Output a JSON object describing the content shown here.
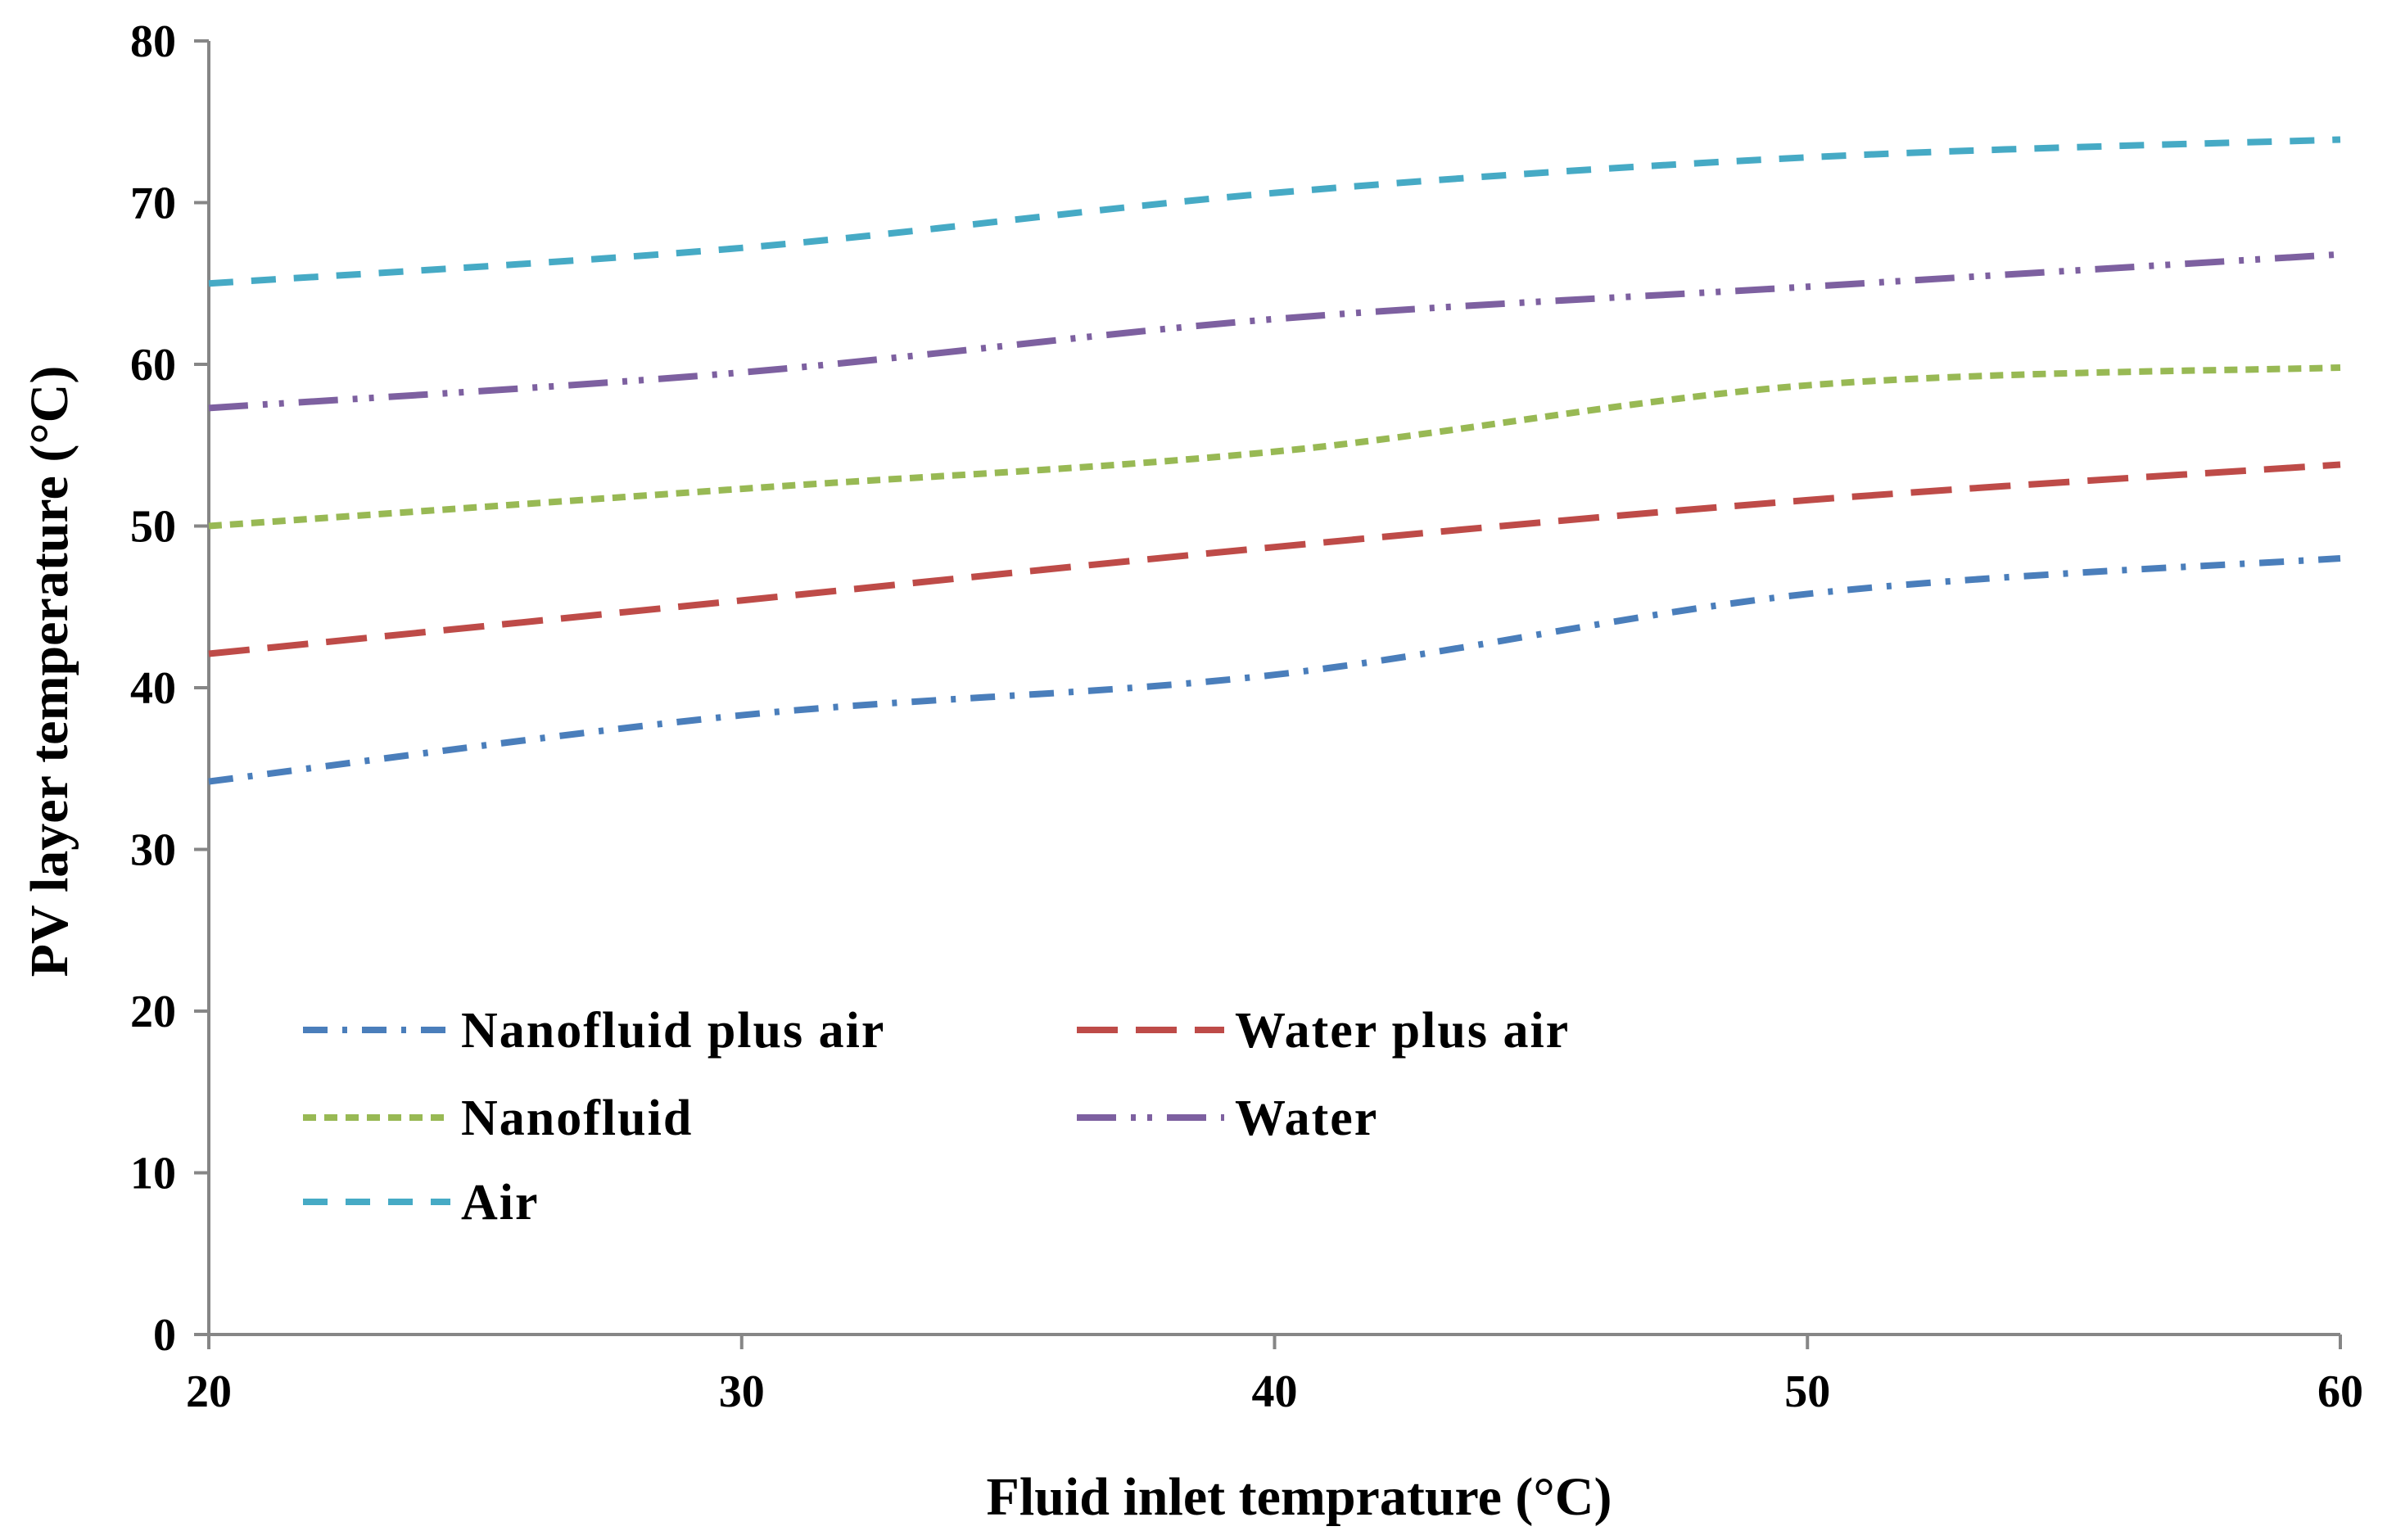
{
  "chart_data": {
    "type": "line",
    "title": "",
    "xlabel": "Fluid  inlet temprature  (°C)",
    "ylabel": "PV layer temperature  (°C)",
    "xlim": [
      20,
      60
    ],
    "ylim": [
      0,
      80
    ],
    "x_ticks": [
      "20",
      "30",
      "40",
      "50",
      "60"
    ],
    "y_ticks": [
      "0",
      "10",
      "20",
      "30",
      "40",
      "50",
      "60",
      "70",
      "80"
    ],
    "grid": false,
    "legend_position": "bottom-left",
    "x": [
      20,
      30,
      40,
      50,
      60
    ],
    "series": [
      {
        "name": "Nanofluid plus air",
        "color": "#4a7ebb",
        "dash": "dash-dot",
        "values": [
          34.2,
          38.3,
          40.8,
          45.8,
          48.0
        ]
      },
      {
        "name": "Water plus air",
        "color": "#be4b48",
        "dash": "long-dash",
        "values": [
          42.1,
          45.4,
          48.7,
          51.6,
          53.8
        ]
      },
      {
        "name": "Nanofluid",
        "color": "#98b954",
        "dash": "short-dash",
        "values": [
          50.0,
          52.3,
          54.6,
          58.7,
          59.8
        ]
      },
      {
        "name": "Water",
        "color": "#7d60a0",
        "dash": "long-dash-dot-dot",
        "values": [
          57.3,
          59.5,
          62.8,
          64.8,
          66.8
        ]
      },
      {
        "name": "Air",
        "color": "#46aac5",
        "dash": "dash",
        "values": [
          65.0,
          67.2,
          70.6,
          72.8,
          73.9
        ]
      }
    ]
  }
}
